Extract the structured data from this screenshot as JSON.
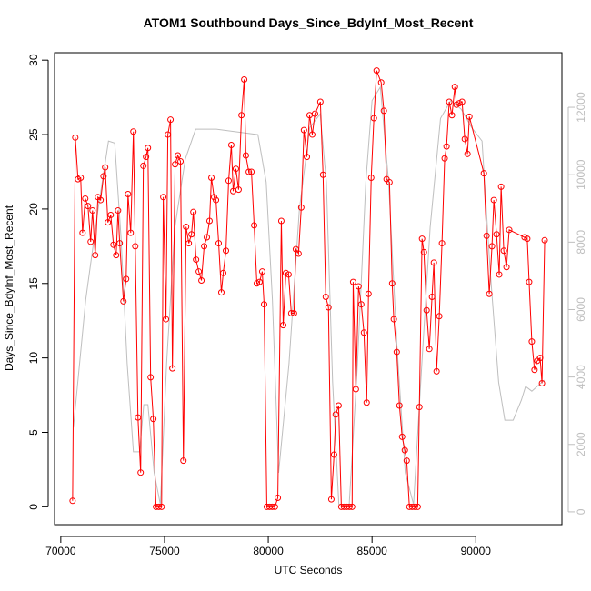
{
  "chart_data": {
    "type": "line",
    "title": "ATOM1 Southbound Days_Since_BdyInf_Most_Recent",
    "x_label": "UTC Seconds",
    "y_label": "Days_Since_BdyInf_Most_Recent",
    "xlim": [
      69700,
      94150
    ],
    "xticks": [
      70000,
      75000,
      80000,
      85000,
      90000
    ],
    "ylim": [
      -1.2,
      30.5
    ],
    "yticks": [
      0,
      5,
      10,
      15,
      20,
      25,
      30
    ],
    "y2lim": [
      -380,
      13620
    ],
    "y2ticks": [
      0,
      2000,
      4000,
      6000,
      8000,
      10000,
      12000
    ],
    "series": [
      {
        "color": "#ff0000",
        "markers": true,
        "x": [
          70570,
          70700,
          70830,
          70960,
          71050,
          71180,
          71310,
          71440,
          71530,
          71660,
          71790,
          71920,
          72060,
          72140,
          72270,
          72410,
          72540,
          72670,
          72760,
          72840,
          73020,
          73150,
          73240,
          73370,
          73500,
          73590,
          73720,
          73850,
          73980,
          74110,
          74200,
          74330,
          74460,
          74590,
          74720,
          74860,
          74940,
          75070,
          75160,
          75290,
          75380,
          75510,
          75640,
          75770,
          75910,
          76040,
          76170,
          76300,
          76390,
          76520,
          76650,
          76780,
          76910,
          77040,
          77170,
          77260,
          77390,
          77480,
          77610,
          77740,
          77830,
          77960,
          78090,
          78220,
          78310,
          78440,
          78570,
          78710,
          78840,
          78920,
          79060,
          79190,
          79320,
          79450,
          79580,
          79710,
          79800,
          79930,
          80060,
          80190,
          80320,
          80460,
          80630,
          80720,
          80850,
          80980,
          81110,
          81240,
          81330,
          81460,
          81590,
          81720,
          81860,
          81990,
          82120,
          82250,
          82510,
          82640,
          82770,
          82900,
          83040,
          83170,
          83250,
          83390,
          83520,
          83650,
          83780,
          83910,
          84040,
          84090,
          84220,
          84350,
          84480,
          84610,
          84740,
          84830,
          84960,
          85090,
          85220,
          85440,
          85570,
          85700,
          85840,
          85970,
          86050,
          86190,
          86320,
          86450,
          86580,
          86670,
          86800,
          86930,
          87060,
          87200,
          87280,
          87410,
          87500,
          87630,
          87760,
          87890,
          87980,
          88110,
          88240,
          88370,
          88500,
          88590,
          88720,
          88850,
          88990,
          89070,
          89200,
          89340,
          89470,
          89600,
          89690,
          90390,
          90520,
          90650,
          90780,
          90870,
          91000,
          91130,
          91220,
          91350,
          91480,
          91610,
          92350,
          92480,
          92570,
          92700,
          92830,
          92960,
          93100,
          93190,
          93320
        ],
        "values": [
          0.4,
          24.8,
          22.0,
          22.1,
          18.4,
          20.7,
          20.2,
          17.8,
          19.9,
          16.9,
          20.8,
          20.6,
          22.2,
          22.8,
          19.1,
          19.6,
          17.6,
          16.9,
          19.9,
          17.7,
          13.8,
          15.3,
          21.0,
          18.4,
          25.2,
          17.5,
          6.0,
          2.3,
          22.9,
          23.5,
          24.1,
          8.7,
          5.9,
          0,
          0,
          0,
          20.8,
          12.6,
          25.0,
          26.0,
          9.3,
          23.0,
          23.6,
          23.2,
          3.1,
          18.8,
          17.7,
          18.3,
          19.8,
          16.6,
          15.8,
          15.2,
          17.5,
          18.1,
          19.2,
          22.1,
          20.8,
          20.6,
          17.7,
          14.4,
          15.7,
          17.2,
          21.9,
          24.3,
          21.2,
          22.7,
          21.3,
          26.3,
          28.7,
          23.6,
          22.5,
          22.5,
          18.9,
          15.0,
          15.1,
          15.8,
          13.6,
          0,
          0,
          0,
          0,
          0.6,
          19.2,
          12.2,
          15.7,
          15.6,
          13.0,
          13.0,
          17.3,
          17.0,
          20.1,
          25.3,
          23.5,
          26.3,
          25.0,
          26.4,
          27.2,
          22.3,
          14.1,
          13.4,
          0.5,
          3.5,
          6.2,
          6.8,
          0,
          0,
          0,
          0,
          0,
          15.1,
          7.9,
          14.8,
          13.6,
          11.7,
          7.0,
          14.3,
          22.1,
          26.1,
          29.3,
          28.5,
          26.6,
          22.0,
          21.8,
          15.0,
          12.6,
          10.4,
          6.8,
          4.7,
          3.8,
          3.1,
          0,
          0,
          0,
          0,
          6.7,
          18.0,
          17.1,
          13.2,
          10.6,
          14.1,
          16.4,
          9.1,
          12.8,
          17.7,
          23.4,
          24.2,
          27.2,
          26.3,
          28.2,
          27.0,
          27.1,
          27.2,
          24.7,
          23.7,
          26.2,
          22.4,
          18.2,
          14.3,
          17.5,
          20.6,
          18.3,
          15.6,
          21.5,
          17.2,
          16.1,
          18.6,
          18.1,
          18.0,
          15.1,
          11.1,
          9.2,
          9.8,
          10.0,
          8.3,
          17.9
        ]
      },
      {
        "color": "#bebebe",
        "axis": "y2",
        "markers": false,
        "x": [
          70610,
          71200,
          71800,
          72300,
          72600,
          72900,
          73200,
          73500,
          73800,
          74000,
          74200,
          74500,
          74800,
          75100,
          75500,
          76000,
          76500,
          77500,
          78500,
          79500,
          79900,
          80200,
          80500,
          81000,
          81500,
          82000,
          82500,
          82800,
          83100,
          83400,
          83900,
          84300,
          84700,
          85000,
          85400,
          85800,
          86200,
          86600,
          87000,
          87400,
          87800,
          88300,
          88800,
          89300,
          89800,
          90300,
          90700,
          91100,
          91400,
          91800,
          92200,
          92400,
          92700,
          93300
        ],
        "values": [
          2500,
          6280,
          8980,
          11000,
          10940,
          8170,
          4400,
          1780,
          1780,
          3180,
          3180,
          1160,
          220,
          4400,
          8440,
          10460,
          11350,
          11350,
          11270,
          11190,
          9780,
          6280,
          1160,
          4400,
          8980,
          11400,
          11800,
          9780,
          3850,
          220,
          220,
          4400,
          9780,
          12200,
          12600,
          9780,
          4930,
          1160,
          220,
          4400,
          8440,
          11670,
          12210,
          11940,
          11400,
          11000,
          7090,
          3850,
          2720,
          2720,
          3320,
          3720,
          3580,
          3910
        ]
      }
    ]
  }
}
